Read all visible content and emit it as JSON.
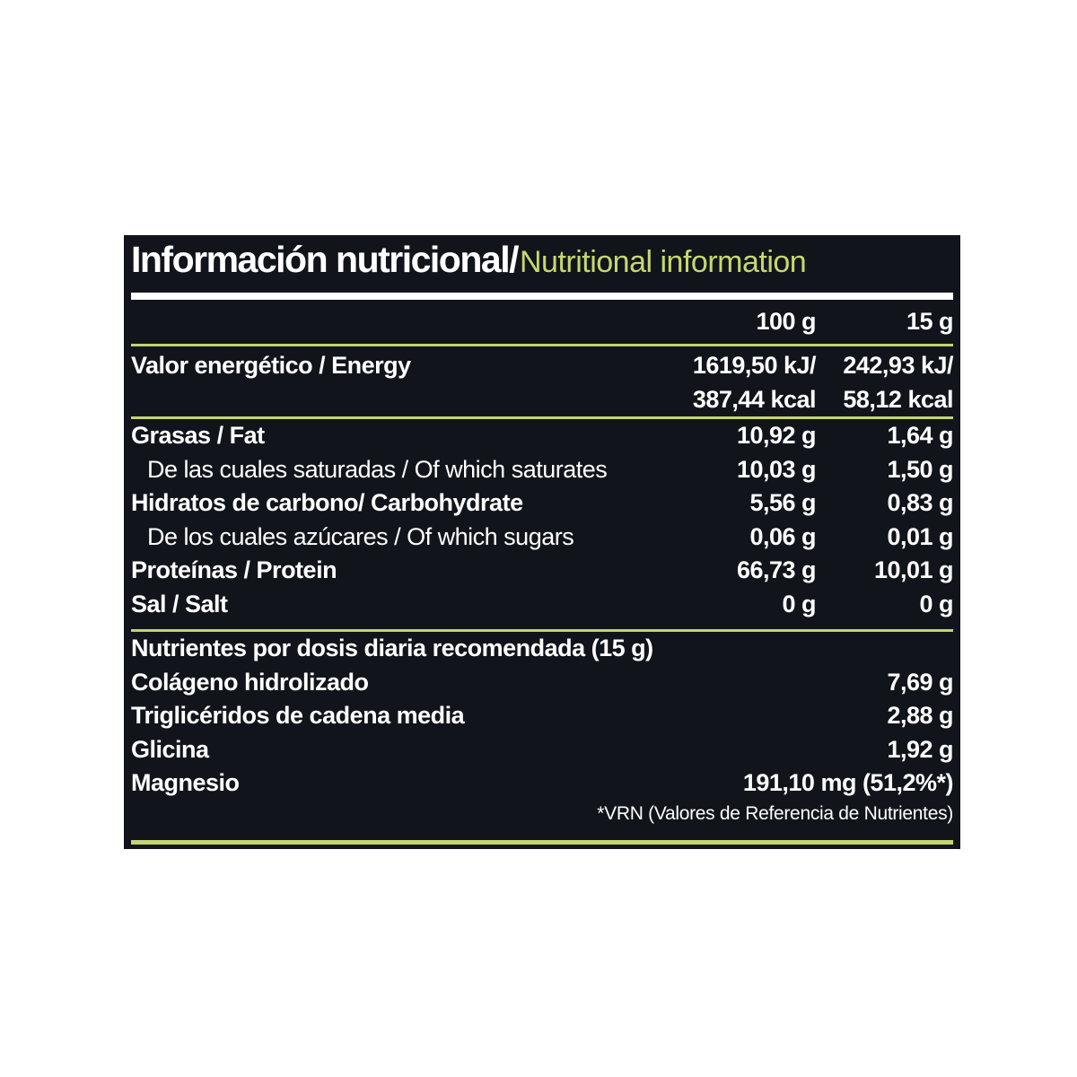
{
  "panel": {
    "background": "#11151b",
    "accent_green": "#c3d470",
    "title_es": "Información nutricional/",
    "title_en": "Nutritional information"
  },
  "columns": {
    "per100": "100 g",
    "per15": "15 g"
  },
  "energy": {
    "label": "Valor energético / Energy",
    "per100_line1": "1619,50 kJ/",
    "per100_line2": "387,44 kcal",
    "per15_line1": "242,93 kJ/",
    "per15_line2": "58,12 kcal"
  },
  "rows": [
    {
      "label": "Grasas / Fat",
      "per100": "10,92 g",
      "per15": "1,64 g"
    },
    {
      "label": "De las cuales saturadas / Of which saturates",
      "per100": "10,03 g",
      "per15": "1,50 g"
    },
    {
      "label": "Hidratos de carbono/ Carbohydrate",
      "per100": "5,56 g",
      "per15": "0,83 g"
    },
    {
      "label": "De los cuales azúcares / Of which sugars",
      "per100": "0,06 g",
      "per15": "0,01 g"
    },
    {
      "label": "Proteínas / Protein",
      "per100": "66,73 g",
      "per15": "10,01 g"
    },
    {
      "label": "Sal / Salt",
      "per100": "0 g",
      "per15": "0 g"
    }
  ],
  "daily": {
    "heading": "Nutrientes por dosis diaria recomendada (15 g)",
    "rows": [
      {
        "label": "Colágeno hidrolizado",
        "value": "7,69 g"
      },
      {
        "label": "Triglicéridos de cadena media",
        "value": "2,88 g"
      },
      {
        "label": "Glicina",
        "value": "1,92 g"
      },
      {
        "label": "Magnesio",
        "value": "191,10 mg (51,2%*)"
      }
    ],
    "footnote": "*VRN (Valores de Referencia de Nutrientes)"
  }
}
